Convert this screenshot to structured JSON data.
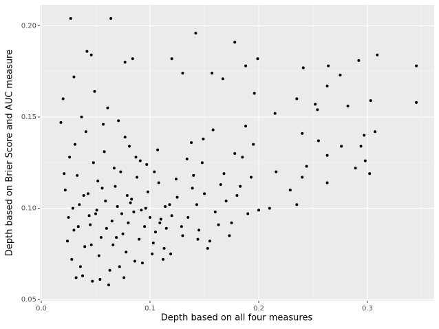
{
  "chart_data": {
    "type": "scatter",
    "x_label": "Depth based on all four measures",
    "y_label": "Depth based on Brier Score and AUC measure",
    "color": "#000000",
    "grid": true,
    "xlim": [
      -0.0013,
      0.3614
    ],
    "ylim": [
      0.0493,
      0.2115
    ],
    "xticks": [
      {
        "value": 0,
        "label": "0.0"
      },
      0.1,
      0.2,
      0.3
    ],
    "yticks": [
      0.05,
      {
        "value": 0.1,
        "label": "0.10"
      },
      0.15,
      {
        "value": 0.2,
        "label": "0.20"
      }
    ],
    "x": [
      0.027,
      0.064,
      0.142,
      0.178,
      0.042,
      0.046,
      0.309,
      0.084,
      0.199,
      0.292,
      0.12,
      0.077,
      0.345,
      0.264,
      0.241,
      0.188,
      0.13,
      0.157,
      0.275,
      0.167,
      0.196,
      0.263,
      0.03,
      0.345,
      0.303,
      0.282,
      0.252,
      0.254,
      0.235,
      0.215,
      0.24,
      0.255,
      0.297,
      0.307,
      0.263,
      0.276,
      0.294,
      0.298,
      0.289,
      0.302,
      0.263,
      0.244,
      0.24,
      0.229,
      0.235,
      0.216,
      0.21,
      0.2,
      0.018,
      0.02,
      0.025,
      0.03,
      0.035,
      0.04,
      0.045,
      0.05,
      0.055,
      0.06,
      0.065,
      0.07,
      0.075,
      0.08,
      0.085,
      0.09,
      0.095,
      0.1,
      0.105,
      0.11,
      0.115,
      0.12,
      0.022,
      0.028,
      0.033,
      0.038,
      0.043,
      0.048,
      0.053,
      0.058,
      0.063,
      0.068,
      0.073,
      0.078,
      0.083,
      0.088,
      0.093,
      0.098,
      0.103,
      0.108,
      0.113,
      0.118,
      0.024,
      0.031,
      0.036,
      0.041,
      0.047,
      0.052,
      0.057,
      0.062,
      0.067,
      0.072,
      0.077,
      0.082,
      0.087,
      0.092,
      0.097,
      0.102,
      0.107,
      0.112,
      0.125,
      0.13,
      0.026,
      0.032,
      0.037,
      0.044,
      0.049,
      0.054,
      0.059,
      0.061,
      0.066,
      0.071,
      0.076,
      0.081,
      0.086,
      0.091,
      0.096,
      0.135,
      0.14,
      0.145,
      0.15,
      0.155,
      0.16,
      0.165,
      0.17,
      0.175,
      0.18,
      0.185,
      0.19,
      0.195,
      0.138,
      0.148,
      0.158,
      0.168,
      0.178,
      0.188,
      0.143,
      0.153,
      0.163,
      0.173,
      0.183,
      0.193,
      0.021,
      0.029,
      0.034,
      0.039,
      0.046,
      0.051,
      0.056,
      0.069,
      0.074,
      0.079,
      0.104,
      0.109,
      0.114,
      0.119,
      0.124,
      0.129,
      0.134,
      0.139,
      0.144,
      0.149
    ],
    "values": [
      0.204,
      0.204,
      0.196,
      0.191,
      0.186,
      0.184,
      0.184,
      0.182,
      0.182,
      0.181,
      0.182,
      0.18,
      0.178,
      0.178,
      0.177,
      0.178,
      0.174,
      0.174,
      0.173,
      0.171,
      0.163,
      0.167,
      0.172,
      0.158,
      0.159,
      0.156,
      0.157,
      0.154,
      0.16,
      0.152,
      0.141,
      0.137,
      0.14,
      0.142,
      0.129,
      0.134,
      0.134,
      0.126,
      0.122,
      0.119,
      0.114,
      0.123,
      0.117,
      0.11,
      0.102,
      0.12,
      0.1,
      0.099,
      0.147,
      0.16,
      0.095,
      0.088,
      0.102,
      0.079,
      0.091,
      0.097,
      0.084,
      0.089,
      0.093,
      0.101,
      0.086,
      0.092,
      0.098,
      0.083,
      0.09,
      0.095,
      0.087,
      0.094,
      0.089,
      0.096,
      0.11,
      0.072,
      0.118,
      0.063,
      0.108,
      0.125,
      0.074,
      0.131,
      0.066,
      0.112,
      0.12,
      0.076,
      0.105,
      0.117,
      0.07,
      0.109,
      0.081,
      0.114,
      0.078,
      0.102,
      0.082,
      0.135,
      0.068,
      0.142,
      0.06,
      0.115,
      0.146,
      0.058,
      0.122,
      0.068,
      0.139,
      0.103,
      0.128,
      0.099,
      0.124,
      0.075,
      0.132,
      0.072,
      0.106,
      0.085,
      0.128,
      0.062,
      0.15,
      0.096,
      0.164,
      0.061,
      0.104,
      0.155,
      0.08,
      0.148,
      0.062,
      0.134,
      0.071,
      0.126,
      0.1,
      0.095,
      0.118,
      0.088,
      0.108,
      0.082,
      0.098,
      0.113,
      0.104,
      0.092,
      0.107,
      0.128,
      0.097,
      0.135,
      0.136,
      0.125,
      0.143,
      0.119,
      0.13,
      0.145,
      0.102,
      0.078,
      0.091,
      0.085,
      0.112,
      0.117,
      0.119,
      0.1,
      0.09,
      0.107,
      0.08,
      0.099,
      0.111,
      0.084,
      0.097,
      0.107,
      0.12,
      0.092,
      0.101,
      0.075,
      0.116,
      0.09,
      0.127,
      0.111,
      0.083,
      0.138
    ]
  }
}
